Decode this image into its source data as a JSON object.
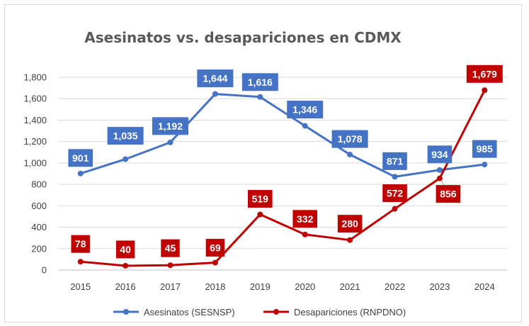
{
  "chart_data": {
    "type": "line",
    "title": "Asesinatos vs. desapariciones en CDMX",
    "xlabel": "",
    "ylabel": "",
    "categories": [
      "2015",
      "2016",
      "2017",
      "2018",
      "2019",
      "2020",
      "2021",
      "2022",
      "2023",
      "2024"
    ],
    "ylim": [
      0,
      1800
    ],
    "yticks": [
      "0",
      "200",
      "400",
      "600",
      "800",
      "1,000",
      "1,200",
      "1,400",
      "1,600",
      "1,800"
    ],
    "grid": true,
    "legend_position": "bottom",
    "series": [
      {
        "name": "Asesinatos (SESNSP)",
        "color": "#4472C4",
        "values": [
          901,
          1035,
          1192,
          1644,
          1616,
          1346,
          1078,
          871,
          934,
          985
        ],
        "labels": [
          "901",
          "1,035",
          "1,192",
          "1,644",
          "1,616",
          "1,346",
          "1,078",
          "871",
          "934",
          "985"
        ]
      },
      {
        "name": "Desapariciones (RNPDNO)",
        "color": "#C00000",
        "values": [
          78,
          40,
          45,
          69,
          519,
          332,
          280,
          572,
          856,
          1679
        ],
        "labels": [
          "78",
          "40",
          "45",
          "69",
          "519",
          "332",
          "280",
          "572",
          "856",
          "1,679"
        ]
      }
    ]
  }
}
